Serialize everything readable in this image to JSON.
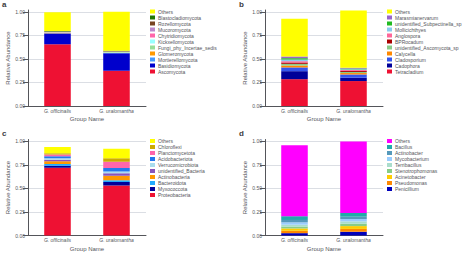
{
  "chart_data": [
    {
      "type": "bar",
      "stacked": true,
      "title": "a",
      "xlabel": "Group Name",
      "ylabel": "Relative Abundance",
      "categories": [
        "G. officinalis",
        "G. uralomantha"
      ],
      "series": [
        {
          "name": "Ascomycota",
          "color": "#EE1133",
          "values": [
            0.655,
            0.375
          ]
        },
        {
          "name": "Basidiomycota",
          "color": "#0000CC",
          "values": [
            0.115,
            0.185
          ]
        },
        {
          "name": "Mortierellomycota",
          "color": "#4499FF",
          "values": [
            0.004,
            0.004
          ]
        },
        {
          "name": "Glomeromycota",
          "color": "#FF9900",
          "values": [
            0.003,
            0.003
          ]
        },
        {
          "name": "Fungi_phy_Incertae_sedis",
          "color": "#99DD99",
          "values": [
            0.003,
            0.003
          ]
        },
        {
          "name": "Kickxellomycota",
          "color": "#99FFFF",
          "values": [
            0.003,
            0.003
          ]
        },
        {
          "name": "Chytridiomycota",
          "color": "#FF66AA",
          "values": [
            0.003,
            0.003
          ]
        },
        {
          "name": "Mucoromycota",
          "color": "#BB88CC",
          "values": [
            0.003,
            0.003
          ]
        },
        {
          "name": "Rozellomycota",
          "color": "#774422",
          "values": [
            0.003,
            0.003
          ]
        },
        {
          "name": "Blastocladiomycota",
          "color": "#227700",
          "values": [
            0.004,
            0.004
          ]
        },
        {
          "name": "Others",
          "color": "#FFFF00",
          "values": [
            0.2,
            0.415
          ]
        }
      ],
      "ylim": [
        0,
        1.02
      ],
      "yticks": [
        {
          "value": 0,
          "label": "0.00"
        },
        0.25,
        {
          "value": 0.5,
          "label": "0.50"
        },
        0.75,
        {
          "value": 1.0,
          "label": "1.00"
        }
      ],
      "grid": true,
      "legend": "right"
    },
    {
      "type": "bar",
      "stacked": true,
      "title": "b",
      "xlabel": "Group Name",
      "ylabel": "Relative Abundance",
      "categories": [
        "G. officinalis",
        "G. uralomantha"
      ],
      "series": [
        {
          "name": "Tetracladium",
          "color": "#EE1133",
          "values": [
            0.285,
            0.265
          ]
        },
        {
          "name": "Cadophora",
          "color": "#000099",
          "values": [
            0.085,
            0.035
          ]
        },
        {
          "name": "Cladosporium",
          "color": "#3355EE",
          "values": [
            0.04,
            0.035
          ]
        },
        {
          "name": "Calycella",
          "color": "#FF8800",
          "values": [
            0.02,
            0.015
          ]
        },
        {
          "name": "unidentified_Ascomycota_sp",
          "color": "#88CC88",
          "values": [
            0.018,
            0.012
          ]
        },
        {
          "name": "BPRocadum",
          "color": "#AA0000",
          "values": [
            0.014,
            0.01
          ]
        },
        {
          "name": "Anglospora",
          "color": "#FF6699",
          "values": [
            0.014,
            0.01
          ]
        },
        {
          "name": "Mollicichthyes",
          "color": "#88CCEE",
          "values": [
            0.018,
            0.008
          ]
        },
        {
          "name": "unidentified_Subpectinella_sp",
          "color": "#22BB22",
          "values": [
            0.014,
            0.008
          ]
        },
        {
          "name": "Marasmianervarum",
          "color": "#9966CC",
          "values": [
            0.018,
            0.008
          ]
        },
        {
          "name": "Others",
          "color": "#FFFF00",
          "values": [
            0.4,
            0.61
          ]
        }
      ],
      "ylim": [
        0,
        1.02
      ],
      "yticks": [
        {
          "value": 0,
          "label": "0.00"
        },
        0.25,
        {
          "value": 0.5,
          "label": "0.50"
        },
        0.75,
        {
          "value": 1.0,
          "label": "1.00"
        }
      ],
      "grid": true,
      "legend": "right"
    },
    {
      "type": "bar",
      "stacked": true,
      "title": "c",
      "xlabel": "Group Name",
      "ylabel": "Relative Abundance",
      "categories": [
        "G. officinalis",
        "G. uralomantha"
      ],
      "series": [
        {
          "name": "Proteobacteria",
          "color": "#EE1133",
          "values": [
            0.72,
            0.53
          ]
        },
        {
          "name": "Myxococcota",
          "color": "#000099",
          "values": [
            0.022,
            0.038
          ]
        },
        {
          "name": "Bacteroidota",
          "color": "#22AAFF",
          "values": [
            0.018,
            0.018
          ]
        },
        {
          "name": "Actinobacteria",
          "color": "#FF9900",
          "values": [
            0.028,
            0.048
          ]
        },
        {
          "name": "unidentified_Bacteria",
          "color": "#8855BB",
          "values": [
            0.018,
            0.028
          ]
        },
        {
          "name": "Verrucomicrobiota",
          "color": "#AADDEE",
          "values": [
            0.014,
            0.018
          ]
        },
        {
          "name": "Acidobacteriota",
          "color": "#2277EE",
          "values": [
            0.022,
            0.038
          ]
        },
        {
          "name": "Planctomycetota",
          "color": "#FF66AA",
          "values": [
            0.018,
            0.065
          ]
        },
        {
          "name": "Chloroflexi",
          "color": "#CCAA00",
          "values": [
            0.014,
            0.038
          ]
        },
        {
          "name": "Others",
          "color": "#FFFF00",
          "values": [
            0.065,
            0.1
          ]
        }
      ],
      "ylim": [
        0,
        1.02
      ],
      "yticks": [
        {
          "value": 0,
          "label": "0.00"
        },
        0.25,
        {
          "value": 0.5,
          "label": "0.50"
        },
        0.75,
        {
          "value": 1.0,
          "label": "1.00"
        }
      ],
      "grid": true,
      "legend": "right"
    },
    {
      "type": "bar",
      "stacked": true,
      "title": "d",
      "xlabel": "Group Name",
      "ylabel": "Relative Abundance",
      "categories": [
        "G. officinalis",
        "G. uralomantha"
      ],
      "series": [
        {
          "name": "Penicillium",
          "color": "#0000BB",
          "values": [
            0.025,
            0.04
          ]
        },
        {
          "name": "Pseudomonas",
          "color": "#FF8800",
          "values": [
            0.025,
            0.03
          ]
        },
        {
          "name": "Acinetobacter",
          "color": "#FFCC00",
          "values": [
            0.025,
            0.03
          ]
        },
        {
          "name": "Stenotrophomonas",
          "color": "#88CC88",
          "values": [
            0.02,
            0.025
          ]
        },
        {
          "name": "Terribacillus",
          "color": "#AADDCC",
          "values": [
            0.02,
            0.025
          ]
        },
        {
          "name": "Mycobacterium",
          "color": "#99CCFF",
          "values": [
            0.025,
            0.025
          ]
        },
        {
          "name": "Actinobacter",
          "color": "#5599BB",
          "values": [
            0.025,
            0.025
          ]
        },
        {
          "name": "Bacillus",
          "color": "#22AAAA",
          "values": [
            0.04,
            0.04
          ]
        },
        {
          "name": "Others",
          "color": "#FF00FF",
          "values": [
            0.755,
            0.76
          ]
        }
      ],
      "ylim": [
        0,
        1.02
      ],
      "yticks": [
        {
          "value": 0,
          "label": "0.00"
        },
        0.25,
        {
          "value": 0.5,
          "label": "0.50"
        },
        0.75,
        {
          "value": 1.0,
          "label": "1.00"
        }
      ],
      "grid": true,
      "legend": "right"
    }
  ]
}
